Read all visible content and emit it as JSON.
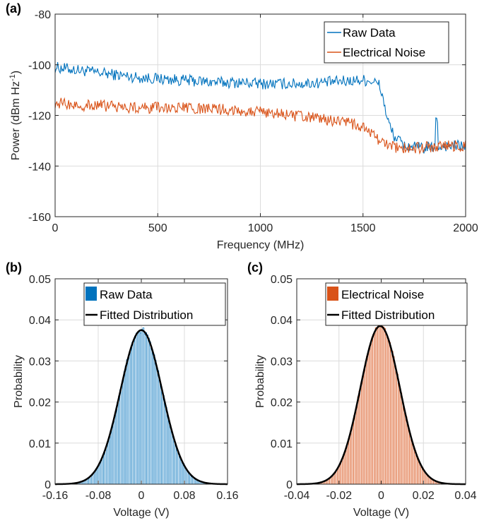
{
  "chart_data": [
    {
      "panel_label": "(a)",
      "type": "line",
      "xlabel": "Frequency (MHz)",
      "ylabel": "Power (dBm Hz",
      "ylabel_sup": "-1",
      "ylabel_close": ")",
      "xlim": [
        0,
        2000
      ],
      "ylim": [
        -160,
        -80
      ],
      "xticks": [
        0,
        500,
        1000,
        1500,
        2000
      ],
      "yticks": [
        -160,
        -140,
        -120,
        -100,
        -80
      ],
      "grid": true,
      "legend_position": "top-right",
      "series": [
        {
          "name": "Raw Data",
          "color": "#0072BD",
          "x": [
            0,
            100,
            200,
            300,
            400,
            500,
            600,
            700,
            800,
            900,
            1000,
            1100,
            1200,
            1300,
            1400,
            1500,
            1550,
            1580,
            1600,
            1620,
            1650,
            1700,
            1750,
            1800,
            1850,
            1900,
            1950,
            2000
          ],
          "y": [
            -101,
            -102,
            -103,
            -104,
            -105,
            -105.5,
            -106,
            -106.5,
            -107,
            -107,
            -107.5,
            -107.5,
            -107.5,
            -107,
            -106.5,
            -106,
            -106.5,
            -108,
            -114,
            -122,
            -128,
            -132,
            -132.5,
            -133,
            -132.5,
            -132,
            -132,
            -132
          ]
        },
        {
          "name": "Electrical Noise",
          "color": "#D95319",
          "x": [
            0,
            100,
            200,
            300,
            400,
            500,
            600,
            700,
            800,
            900,
            1000,
            1100,
            1200,
            1300,
            1400,
            1450,
            1500,
            1550,
            1600,
            1650,
            1700,
            1750,
            1800,
            1850,
            1900,
            1950,
            2000
          ],
          "y": [
            -115,
            -116,
            -116,
            -116.5,
            -117,
            -117,
            -117,
            -117.5,
            -117.5,
            -118,
            -118.5,
            -119.5,
            -120.5,
            -121.5,
            -122.5,
            -123.5,
            -125,
            -128,
            -131,
            -132.5,
            -133,
            -133,
            -132.5,
            -132.5,
            -132,
            -132,
            -132
          ]
        }
      ]
    },
    {
      "panel_label": "(b)",
      "type": "bar",
      "xlabel": "Voltage (V)",
      "ylabel": "Probability",
      "xlim": [
        -0.16,
        0.16
      ],
      "ylim": [
        0,
        0.05
      ],
      "xticks": [
        -0.16,
        -0.08,
        0,
        0.08,
        0.16
      ],
      "xtick_labels": [
        "-0.16",
        "-0.08",
        "0",
        "0.08",
        "0.16"
      ],
      "yticks": [
        0,
        0.01,
        0.02,
        0.03,
        0.04,
        0.05
      ],
      "ytick_labels": [
        "0",
        "0.01",
        "0.02",
        "0.03",
        "0.04",
        "0.05"
      ],
      "grid": true,
      "legend_position": "top",
      "histogram": {
        "name": "Raw Data",
        "color": "#0072BD",
        "mean": 0,
        "std": 0.0388,
        "peak": 0.0375,
        "bin_width": 0.0025
      },
      "fit": {
        "name": "Fitted Distribution",
        "color": "#000000",
        "mean": 0,
        "std": 0.0388,
        "peak": 0.0375
      }
    },
    {
      "panel_label": "(c)",
      "type": "bar",
      "xlabel": "Voltage (V)",
      "ylabel": "Probability",
      "xlim": [
        -0.04,
        0.04
      ],
      "ylim": [
        0,
        0.05
      ],
      "xticks": [
        -0.04,
        -0.02,
        0,
        0.02,
        0.04
      ],
      "xtick_labels": [
        "-0.04",
        "-0.02",
        "0",
        "0.02",
        "0.04"
      ],
      "yticks": [
        0,
        0.01,
        0.02,
        0.03,
        0.04,
        0.05
      ],
      "ytick_labels": [
        "0",
        "0.01",
        "0.02",
        "0.03",
        "0.04",
        "0.05"
      ],
      "grid": true,
      "legend_position": "top",
      "histogram": {
        "name": "Electrical Noise",
        "color": "#D95319",
        "mean": -0.0005,
        "std": 0.0094,
        "peak": 0.0385,
        "bin_width": 0.0006
      },
      "fit": {
        "name": "Fitted Distribution",
        "color": "#000000",
        "mean": -0.0005,
        "std": 0.0094,
        "peak": 0.0385
      }
    }
  ]
}
